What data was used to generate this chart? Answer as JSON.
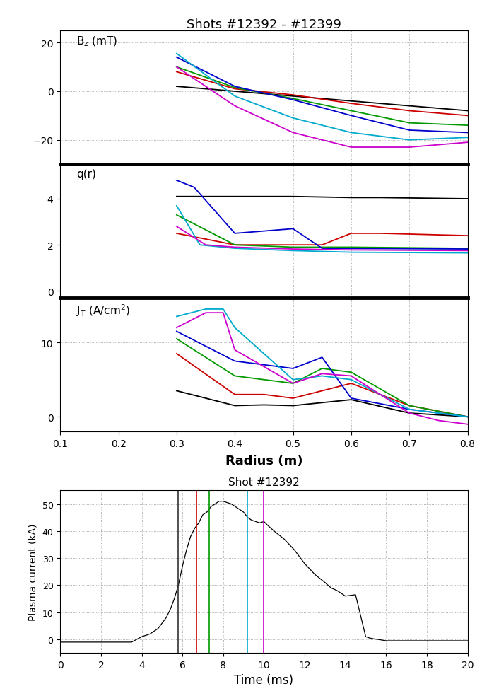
{
  "title_top": "Shots #12392 - #12399",
  "title_bottom": "Shot #12392",
  "xlabel_top": "Radius (m)",
  "xlabel_bottom": "Time (ms)",
  "ylabel_bottom": "Plasma current (kA)",
  "xlim": [
    0.1,
    0.8
  ],
  "bz_ylim": [
    -30,
    25
  ],
  "q_ylim": [
    -0.3,
    5.5
  ],
  "jt_ylim": [
    -2,
    16
  ],
  "time_xlim": [
    0,
    20
  ],
  "time_ylim": [
    -5,
    55
  ],
  "colors": [
    "#000000",
    "#cc0000",
    "#009900",
    "#0000cc",
    "#00aacc",
    "#cc00cc"
  ],
  "vline_colors": [
    "#333333",
    "#cc0000",
    "#009900",
    "#00aacc",
    "#cc00cc"
  ],
  "vline_x": [
    5.8,
    6.7,
    7.3,
    9.2,
    10.0
  ],
  "bz_data": {
    "black": {
      "x": [
        0.3,
        0.4,
        0.5,
        0.6,
        0.7,
        0.8
      ],
      "y": [
        2.0,
        0.0,
        -2.0,
        -4.0,
        -6.0,
        -8.0
      ]
    },
    "red": {
      "x": [
        0.3,
        0.4,
        0.5,
        0.6,
        0.7,
        0.8
      ],
      "y": [
        8.0,
        1.0,
        -1.5,
        -5.0,
        -8.0,
        -10.0
      ]
    },
    "green": {
      "x": [
        0.3,
        0.4,
        0.5,
        0.6,
        0.7,
        0.8
      ],
      "y": [
        10.0,
        1.5,
        -3.0,
        -8.0,
        -13.0,
        -14.0
      ]
    },
    "blue": {
      "x": [
        0.3,
        0.4,
        0.5,
        0.6,
        0.7,
        0.8
      ],
      "y": [
        14.0,
        2.0,
        -3.5,
        -10.0,
        -16.0,
        -17.0
      ]
    },
    "cyan": {
      "x": [
        0.3,
        0.4,
        0.5,
        0.6,
        0.7,
        0.8
      ],
      "y": [
        15.5,
        -2.0,
        -11.0,
        -17.0,
        -20.0,
        -19.0
      ]
    },
    "magenta": {
      "x": [
        0.3,
        0.4,
        0.5,
        0.6,
        0.7,
        0.8
      ],
      "y": [
        10.0,
        -6.0,
        -17.0,
        -23.0,
        -23.0,
        -21.0
      ]
    }
  },
  "q_data": {
    "black": {
      "x": [
        0.3,
        0.5,
        0.6,
        0.65,
        0.8
      ],
      "y": [
        4.1,
        4.1,
        4.05,
        4.05,
        4.0
      ]
    },
    "red": {
      "x": [
        0.3,
        0.4,
        0.55,
        0.6,
        0.65,
        0.8
      ],
      "y": [
        2.5,
        2.0,
        2.0,
        2.5,
        2.5,
        2.4
      ]
    },
    "green": {
      "x": [
        0.3,
        0.4,
        0.5,
        0.55,
        0.6,
        0.8
      ],
      "y": [
        3.3,
        2.0,
        1.9,
        1.9,
        1.9,
        1.85
      ]
    },
    "blue": {
      "x": [
        0.3,
        0.33,
        0.4,
        0.5,
        0.55,
        0.8
      ],
      "y": [
        4.8,
        4.5,
        2.5,
        2.7,
        1.85,
        1.82
      ]
    },
    "cyan": {
      "x": [
        0.3,
        0.34,
        0.4,
        0.5,
        0.6,
        0.8
      ],
      "y": [
        3.7,
        2.0,
        1.85,
        1.75,
        1.68,
        1.65
      ]
    },
    "magenta": {
      "x": [
        0.3,
        0.35,
        0.4,
        0.5,
        0.6,
        0.8
      ],
      "y": [
        2.8,
        2.0,
        1.9,
        1.82,
        1.78,
        1.75
      ]
    }
  },
  "jt_data": {
    "black": {
      "x": [
        0.3,
        0.4,
        0.45,
        0.5,
        0.6,
        0.7,
        0.8
      ],
      "y": [
        3.5,
        1.5,
        1.6,
        1.5,
        2.3,
        0.5,
        0.0
      ]
    },
    "red": {
      "x": [
        0.3,
        0.4,
        0.45,
        0.5,
        0.6,
        0.7,
        0.8
      ],
      "y": [
        8.5,
        3.0,
        3.0,
        2.5,
        4.5,
        1.5,
        0.0
      ]
    },
    "green": {
      "x": [
        0.3,
        0.4,
        0.45,
        0.5,
        0.55,
        0.6,
        0.7,
        0.8
      ],
      "y": [
        10.5,
        5.5,
        5.0,
        4.5,
        6.5,
        6.0,
        1.5,
        0.0
      ]
    },
    "blue": {
      "x": [
        0.3,
        0.4,
        0.45,
        0.5,
        0.55,
        0.6,
        0.7,
        0.8
      ],
      "y": [
        11.5,
        7.5,
        7.0,
        6.5,
        8.0,
        2.5,
        1.0,
        0.0
      ]
    },
    "cyan": {
      "x": [
        0.3,
        0.35,
        0.38,
        0.4,
        0.5,
        0.55,
        0.6,
        0.7,
        0.8
      ],
      "y": [
        13.5,
        14.5,
        14.5,
        12.0,
        5.0,
        5.5,
        5.0,
        1.0,
        0.0
      ]
    },
    "magenta": {
      "x": [
        0.3,
        0.35,
        0.38,
        0.4,
        0.5,
        0.55,
        0.6,
        0.7,
        0.75,
        0.8
      ],
      "y": [
        12.0,
        14.0,
        14.0,
        9.0,
        4.5,
        5.8,
        5.5,
        0.5,
        -0.5,
        -1.0
      ]
    }
  },
  "plasma_time": [
    0.0,
    0.2,
    0.4,
    0.6,
    0.8,
    1.0,
    1.5,
    2.0,
    2.5,
    3.0,
    3.5,
    4.0,
    4.2,
    4.4,
    4.6,
    4.8,
    5.0,
    5.2,
    5.4,
    5.6,
    5.8,
    6.0,
    6.2,
    6.4,
    6.6,
    6.8,
    7.0,
    7.2,
    7.4,
    7.6,
    7.8,
    8.0,
    8.2,
    8.4,
    8.6,
    8.8,
    9.0,
    9.2,
    9.4,
    9.6,
    9.8,
    10.0,
    10.2,
    10.5,
    11.0,
    11.5,
    12.0,
    12.5,
    13.0,
    13.3,
    13.6,
    14.0,
    14.5,
    15.0,
    15.2,
    15.4,
    15.6,
    16.0,
    17.0,
    18.0,
    19.0,
    20.0
  ],
  "plasma_current": [
    -1,
    -1,
    -1,
    -1,
    -1,
    -1,
    -1,
    -1,
    -1,
    -1,
    -1,
    1,
    1.5,
    2,
    3,
    4,
    6,
    8,
    11,
    15,
    20,
    27,
    33,
    38,
    41,
    43,
    46,
    47,
    49,
    50,
    51,
    51,
    50.5,
    50,
    49,
    48,
    47,
    45,
    44,
    43.5,
    43,
    43.5,
    42,
    40,
    37,
    33,
    28,
    24,
    21,
    19,
    18,
    16,
    16.5,
    1,
    0.5,
    0.2,
    0,
    -0.5,
    -0.5,
    -0.5,
    -0.5,
    -0.5
  ]
}
